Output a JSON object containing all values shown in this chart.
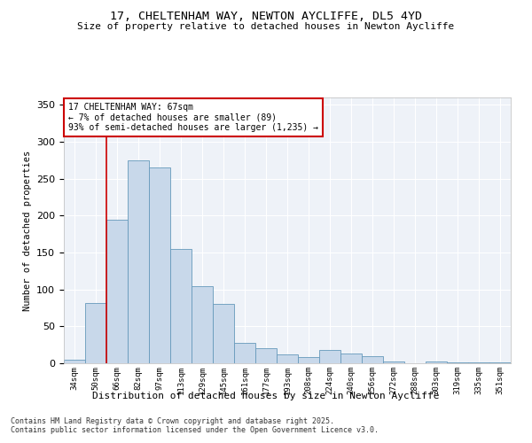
{
  "title1": "17, CHELTENHAM WAY, NEWTON AYCLIFFE, DL5 4YD",
  "title2": "Size of property relative to detached houses in Newton Aycliffe",
  "xlabel": "Distribution of detached houses by size in Newton Aycliffe",
  "ylabel": "Number of detached properties",
  "categories": [
    "34sqm",
    "50sqm",
    "66sqm",
    "82sqm",
    "97sqm",
    "113sqm",
    "129sqm",
    "145sqm",
    "161sqm",
    "177sqm",
    "193sqm",
    "208sqm",
    "224sqm",
    "240sqm",
    "256sqm",
    "272sqm",
    "288sqm",
    "303sqm",
    "319sqm",
    "335sqm",
    "351sqm"
  ],
  "values": [
    5,
    82,
    195,
    275,
    265,
    155,
    105,
    80,
    28,
    20,
    12,
    8,
    18,
    13,
    10,
    2,
    0,
    2,
    1,
    1,
    1
  ],
  "bar_color": "#c8d8ea",
  "bar_edge_color": "#6699bb",
  "vline_color": "#cc0000",
  "annotation_title": "17 CHELTENHAM WAY: 67sqm",
  "annotation_line1": "← 7% of detached houses are smaller (89)",
  "annotation_line2": "93% of semi-detached houses are larger (1,235) →",
  "annotation_box_color": "#cc0000",
  "ylim": [
    0,
    360
  ],
  "yticks": [
    0,
    50,
    100,
    150,
    200,
    250,
    300,
    350
  ],
  "footer1": "Contains HM Land Registry data © Crown copyright and database right 2025.",
  "footer2": "Contains public sector information licensed under the Open Government Licence v3.0.",
  "bg_color": "#eef2f8"
}
